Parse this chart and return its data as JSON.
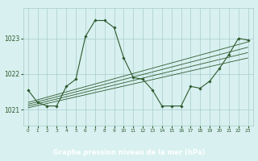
{
  "title": "Graphe pression niveau de la mer (hPa)",
  "bg_color": "#cce8e8",
  "plot_bg_color": "#d8f0f0",
  "grid_color": "#aacccc",
  "line_color": "#2d5a2d",
  "label_bg_color": "#2d5a2d",
  "label_text_color": "#ffffff",
  "xlim": [
    -0.5,
    23.5
  ],
  "ylim": [
    1020.55,
    1023.85
  ],
  "yticks": [
    1021,
    1022,
    1023
  ],
  "xtick_labels": [
    "0",
    "1",
    "2",
    "3",
    "4",
    "5",
    "6",
    "7",
    "8",
    "9",
    "10",
    "11",
    "12",
    "13",
    "14",
    "15",
    "16",
    "17",
    "18",
    "19",
    "20",
    "21",
    "22",
    "23"
  ],
  "xtick_positions": [
    0,
    1,
    2,
    3,
    4,
    5,
    6,
    7,
    8,
    9,
    10,
    11,
    12,
    13,
    14,
    15,
    16,
    17,
    18,
    19,
    20,
    21,
    22,
    23
  ],
  "series_main": {
    "x": [
      0,
      1,
      2,
      3,
      4,
      5,
      6,
      7,
      8,
      9,
      10,
      11,
      12,
      13,
      14,
      15,
      16,
      17,
      18,
      19,
      20,
      21,
      22,
      23
    ],
    "y": [
      1021.55,
      1021.2,
      1021.1,
      1021.1,
      1021.65,
      1021.85,
      1023.05,
      1023.5,
      1023.5,
      1023.3,
      1022.45,
      1021.9,
      1021.85,
      1021.55,
      1021.1,
      1021.1,
      1021.1,
      1021.65,
      1021.6,
      1021.8,
      1022.15,
      1022.55,
      1023.0,
      1022.95
    ]
  },
  "trend_lines": [
    {
      "x": [
        0,
        23
      ],
      "y": [
        1021.05,
        1022.45
      ]
    },
    {
      "x": [
        0,
        23
      ],
      "y": [
        1021.1,
        1022.6
      ]
    },
    {
      "x": [
        0,
        23
      ],
      "y": [
        1021.15,
        1022.75
      ]
    },
    {
      "x": [
        0,
        23
      ],
      "y": [
        1021.2,
        1022.9
      ]
    }
  ]
}
